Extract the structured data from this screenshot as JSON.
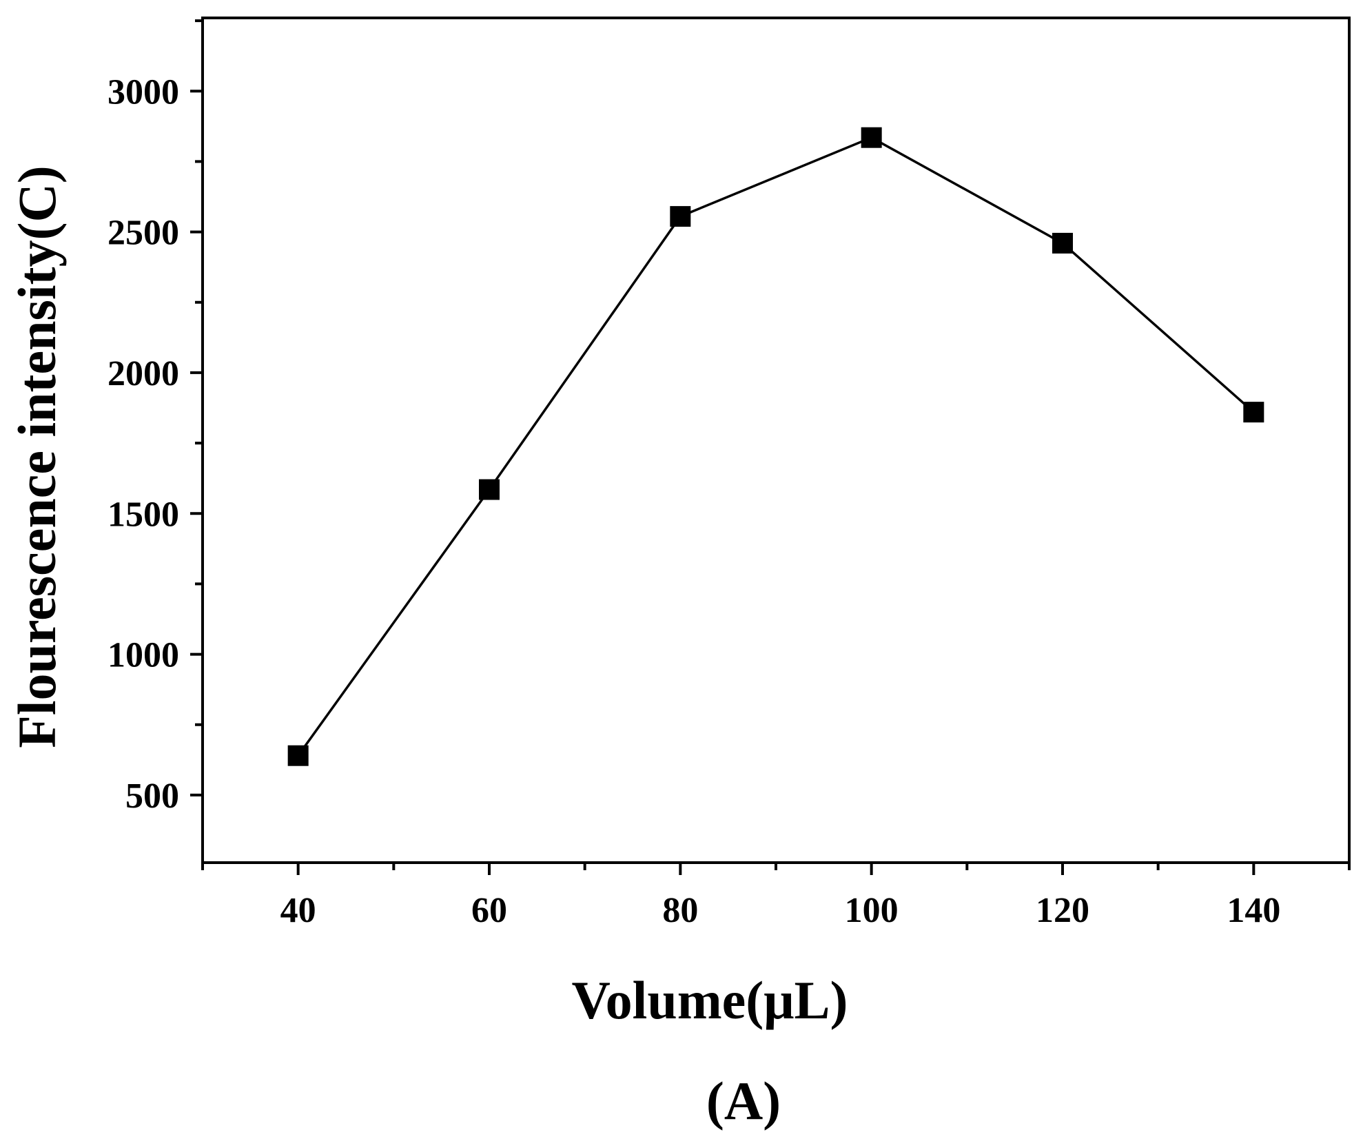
{
  "chart_data": {
    "type": "line",
    "xlabel": "Volume(μL)",
    "ylabel": "Flourescence intensity(C)",
    "panel_label": "(A)",
    "x": [
      40,
      60,
      80,
      100,
      120,
      140
    ],
    "series": [
      {
        "values": [
          640,
          1585,
          2555,
          2835,
          2460,
          1860
        ],
        "marker": "square",
        "color": "#000000"
      }
    ],
    "xlim": [
      30,
      150
    ],
    "ylim": [
      260,
      3260
    ],
    "x_ticks": [
      40,
      60,
      80,
      100,
      120,
      140
    ],
    "x_tick_labels": [
      "40",
      "60",
      "80",
      "100",
      "120",
      "140"
    ],
    "y_ticks": [
      500,
      1000,
      1500,
      2000,
      2500,
      3000
    ],
    "y_tick_labels": [
      "500",
      "1000",
      "1500",
      "2000",
      "2500",
      "3000"
    ],
    "grid": false,
    "legend": "none"
  }
}
